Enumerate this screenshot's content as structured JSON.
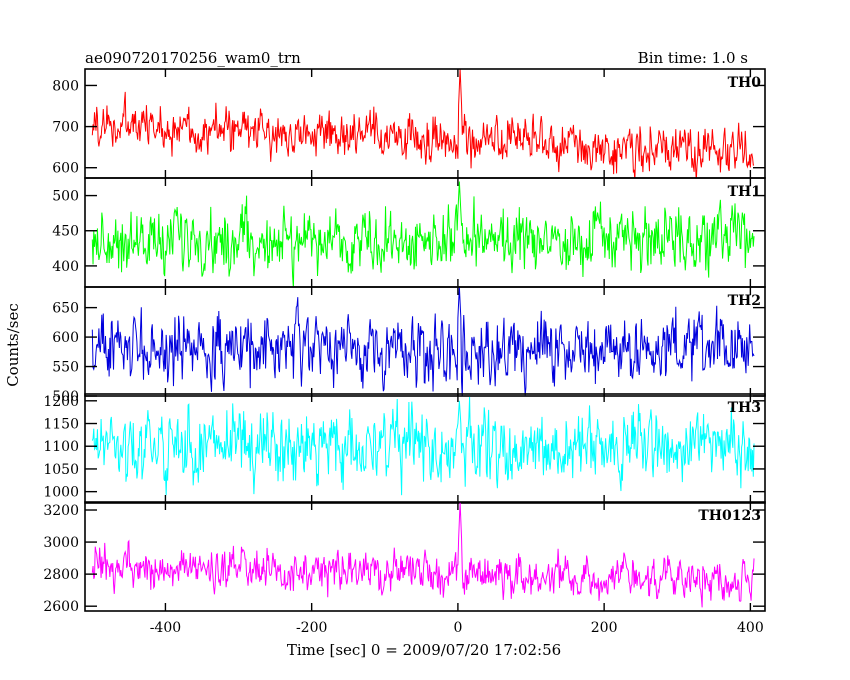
{
  "header": {
    "title": "ae090720170256_wam0_trn",
    "bin_time": "Bin time: 1.0 s"
  },
  "chart_data": {
    "type": "line",
    "xlabel": "Time [sec] 0 = 2009/07/20 17:02:56",
    "ylabel": "Counts/sec",
    "xlim": [
      -510,
      420
    ],
    "x_ticks": [
      -400,
      -200,
      0,
      200,
      400
    ],
    "x_range_data": [
      -500,
      405
    ],
    "grid": false,
    "panels": [
      {
        "name": "TH0",
        "color": "#ff0000",
        "ylim": [
          575,
          840
        ],
        "yticks": [
          600,
          700,
          800
        ],
        "baseline_start": 705,
        "baseline_end": 635,
        "noise_amp": 45,
        "spike": {
          "x": 3,
          "peak": 840
        }
      },
      {
        "name": "TH1",
        "color": "#00ff00",
        "ylim": [
          370,
          525
        ],
        "yticks": [
          400,
          450,
          500
        ],
        "baseline_start": 435,
        "baseline_end": 435,
        "noise_amp": 35,
        "spike": {
          "x": 2,
          "peak": 520
        }
      },
      {
        "name": "TH2",
        "color": "#0000dd",
        "ylim": [
          500,
          685
        ],
        "yticks": [
          500,
          550,
          600,
          650
        ],
        "baseline_start": 580,
        "baseline_end": 580,
        "noise_amp": 45,
        "spike": {
          "x": 2,
          "peak": 685
        }
      },
      {
        "name": "TH3",
        "color": "#00ffff",
        "ylim": [
          975,
          1215
        ],
        "yticks": [
          1000,
          1050,
          1100,
          1150,
          1200
        ],
        "baseline_start": 1100,
        "baseline_end": 1100,
        "noise_amp": 60,
        "spike": {
          "x": 2,
          "peak": 1200
        }
      },
      {
        "name": "TH0123",
        "color": "#ff00ff",
        "ylim": [
          2570,
          3250
        ],
        "yticks": [
          2600,
          2800,
          3000,
          3200
        ],
        "baseline_start": 2840,
        "baseline_end": 2760,
        "noise_amp": 100,
        "spike": {
          "x": 3,
          "peak": 3250
        }
      }
    ]
  }
}
